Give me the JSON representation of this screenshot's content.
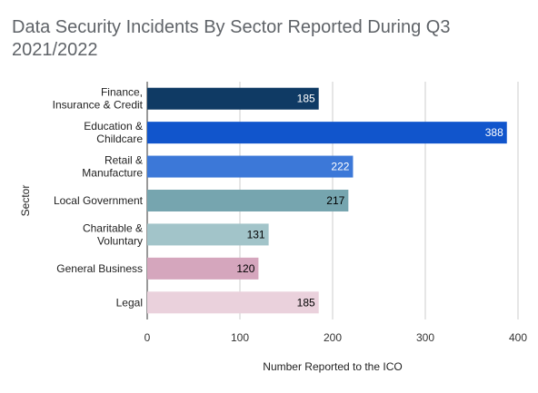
{
  "chart_data": {
    "type": "bar",
    "orientation": "horizontal",
    "title": "Data Security Incidents By Sector Reported During Q3 2021/2022",
    "xlabel": "Number Reported to the ICO",
    "ylabel": "Sector",
    "xlim": [
      0,
      400
    ],
    "xticks": [
      "0",
      "100",
      "200",
      "300",
      "400"
    ],
    "grid": true,
    "categories": [
      [
        "Finance,",
        "Insurance & Credit"
      ],
      [
        "Education &",
        "Childcare"
      ],
      [
        "Retail &",
        "Manufacture"
      ],
      [
        "Local Government"
      ],
      [
        "Charitable &",
        "Voluntary"
      ],
      [
        "General Business"
      ],
      [
        "Legal"
      ]
    ],
    "values": [
      185,
      388,
      222,
      217,
      131,
      120,
      185
    ],
    "colors": [
      "#0f3a64",
      "#1155cc",
      "#3c78d8",
      "#76a5af",
      "#a2c4c9",
      "#d5a6bd",
      "#ead1dc"
    ],
    "label_colors": [
      "#ffffff",
      "#ffffff",
      "#ffffff",
      "#000000",
      "#000000",
      "#000000",
      "#000000"
    ]
  }
}
